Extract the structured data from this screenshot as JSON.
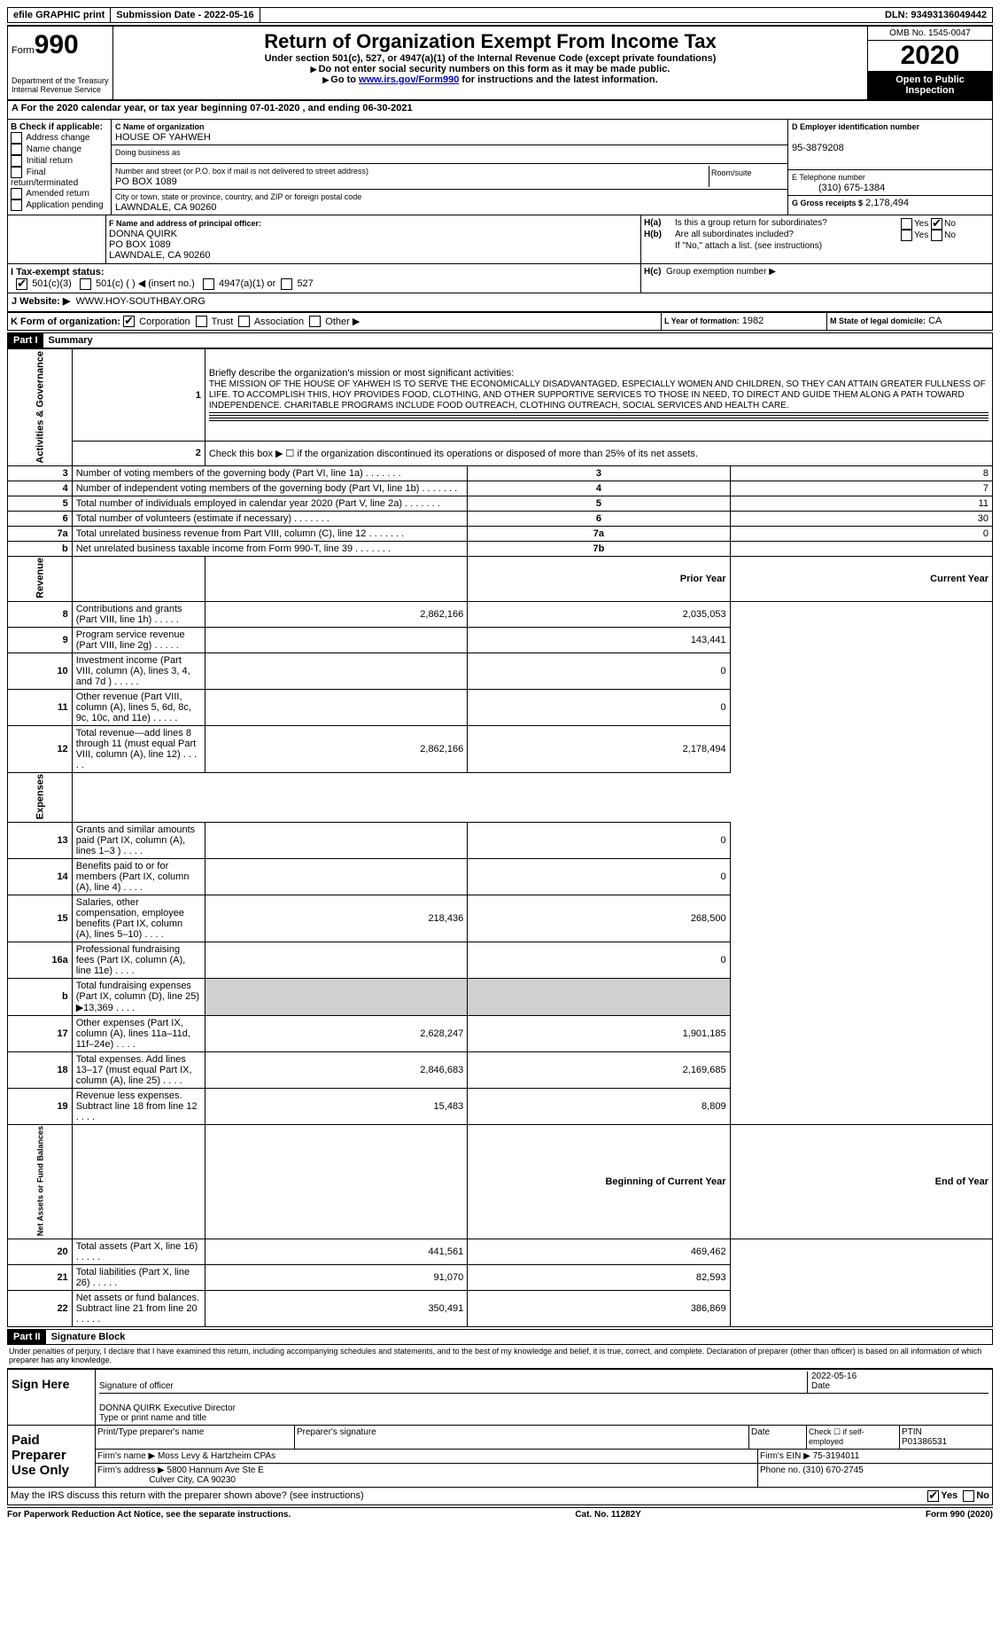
{
  "top_bar": {
    "efile": "efile GRAPHIC print",
    "submission": "Submission Date - 2022-05-16",
    "dln": "DLN: 93493136049442"
  },
  "header": {
    "form_label": "Form",
    "form_number": "990",
    "dept": "Department of the Treasury",
    "irs": "Internal Revenue Service",
    "title": "Return of Organization Exempt From Income Tax",
    "subtitle": "Under section 501(c), 527, or 4947(a)(1) of the Internal Revenue Code (except private foundations)",
    "note1": "Do not enter social security numbers on this form as it may be made public.",
    "note2_prefix": "Go to ",
    "note2_link": "www.irs.gov/Form990",
    "note2_suffix": " for instructions and the latest information.",
    "omb": "OMB No. 1545-0047",
    "year": "2020",
    "open_public": "Open to Public Inspection"
  },
  "section_a": "A  For the 2020 calendar year, or tax year beginning 07-01-2020  , and ending 06-30-2021",
  "box_b": {
    "label": "B Check if applicable:",
    "items": [
      "Address change",
      "Name change",
      "Initial return",
      "Final return/terminated",
      "Amended return",
      "Application pending"
    ]
  },
  "box_c": {
    "label": "C Name of organization",
    "name": "HOUSE OF YAHWEH",
    "dba_label": "Doing business as",
    "addr_label": "Number and street (or P.O. box if mail is not delivered to street address)",
    "addr": "PO BOX 1089",
    "room_label": "Room/suite",
    "city_label": "City or town, state or province, country, and ZIP or foreign postal code",
    "city": "LAWNDALE, CA  90260"
  },
  "box_d": {
    "label": "D Employer identification number",
    "value": "95-3879208"
  },
  "box_e": {
    "label": "E Telephone number",
    "value": "(310) 675-1384"
  },
  "box_g": {
    "label": "G Gross receipts $",
    "value": "2,178,494"
  },
  "box_f": {
    "label": "F  Name and address of principal officer:",
    "name": "DONNA QUIRK",
    "addr1": "PO BOX 1089",
    "addr2": "LAWNDALE, CA  90260"
  },
  "box_h": {
    "a_label": "Is this a group return for subordinates?",
    "b_label": "Are all subordinates included?",
    "b_note": "If \"No,\" attach a list. (see instructions)",
    "c_label": "Group exemption number ▶",
    "yes": "Yes",
    "no": "No"
  },
  "tax_exempt": {
    "label": "I   Tax-exempt status:",
    "opt1": "501(c)(3)",
    "opt2": "501(c) (   ) ◀ (insert no.)",
    "opt3": "4947(a)(1) or",
    "opt4": "527"
  },
  "website": {
    "label": "J   Website: ▶",
    "value": "WWW.HOY-SOUTHBAY.ORG"
  },
  "form_org": {
    "label": "K Form of organization:",
    "opts": [
      "Corporation",
      "Trust",
      "Association",
      "Other ▶"
    ]
  },
  "box_l": {
    "label": "L Year of formation:",
    "value": "1982"
  },
  "box_m": {
    "label": "M State of legal domicile:",
    "value": "CA"
  },
  "part1": {
    "header": "Part I",
    "title": "Summary",
    "line1_label": "Briefly describe the organization's mission or most significant activities:",
    "mission": "THE MISSION OF THE HOUSE OF YAHWEH IS TO SERVE THE ECONOMICALLY DISADVANTAGED, ESPECIALLY WOMEN AND CHILDREN, SO THEY CAN ATTAIN GREATER FULLNESS OF LIFE. TO ACCOMPLISH THIS, HOY PROVIDES FOOD, CLOTHING, AND OTHER SUPPORTIVE SERVICES TO THOSE IN NEED, TO DIRECT AND GUIDE THEM ALONG A PATH TOWARD INDEPENDENCE. CHARITABLE PROGRAMS INCLUDE FOOD OUTREACH, CLOTHING OUTREACH, SOCIAL SERVICES AND HEALTH CARE.",
    "line2": "Check this box ▶ ☐ if the organization discontinued its operations or disposed of more than 25% of its net assets.",
    "vert_labels": {
      "activities": "Activities & Governance",
      "revenue": "Revenue",
      "expenses": "Expenses",
      "netassets": "Net Assets or Fund Balances"
    },
    "lines_gov": [
      {
        "n": "3",
        "desc": "Number of voting members of the governing body (Part VI, line 1a)",
        "box": "3",
        "val": "8"
      },
      {
        "n": "4",
        "desc": "Number of independent voting members of the governing body (Part VI, line 1b)",
        "box": "4",
        "val": "7"
      },
      {
        "n": "5",
        "desc": "Total number of individuals employed in calendar year 2020 (Part V, line 2a)",
        "box": "5",
        "val": "11"
      },
      {
        "n": "6",
        "desc": "Total number of volunteers (estimate if necessary)",
        "box": "6",
        "val": "30"
      },
      {
        "n": "7a",
        "desc": "Total unrelated business revenue from Part VIII, column (C), line 12",
        "box": "7a",
        "val": "0"
      },
      {
        "n": "b",
        "desc": "Net unrelated business taxable income from Form 990-T, line 39",
        "box": "7b",
        "val": ""
      }
    ],
    "col_headers": {
      "prior": "Prior Year",
      "current": "Current Year"
    },
    "lines_rev": [
      {
        "n": "8",
        "desc": "Contributions and grants (Part VIII, line 1h)",
        "prior": "2,862,166",
        "curr": "2,035,053"
      },
      {
        "n": "9",
        "desc": "Program service revenue (Part VIII, line 2g)",
        "prior": "",
        "curr": "143,441"
      },
      {
        "n": "10",
        "desc": "Investment income (Part VIII, column (A), lines 3, 4, and 7d )",
        "prior": "",
        "curr": "0"
      },
      {
        "n": "11",
        "desc": "Other revenue (Part VIII, column (A), lines 5, 6d, 8c, 9c, 10c, and 11e)",
        "prior": "",
        "curr": "0"
      },
      {
        "n": "12",
        "desc": "Total revenue—add lines 8 through 11 (must equal Part VIII, column (A), line 12)",
        "prior": "2,862,166",
        "curr": "2,178,494"
      }
    ],
    "lines_exp": [
      {
        "n": "13",
        "desc": "Grants and similar amounts paid (Part IX, column (A), lines 1–3 )",
        "prior": "",
        "curr": "0"
      },
      {
        "n": "14",
        "desc": "Benefits paid to or for members (Part IX, column (A), line 4)",
        "prior": "",
        "curr": "0"
      },
      {
        "n": "15",
        "desc": "Salaries, other compensation, employee benefits (Part IX, column (A), lines 5–10)",
        "prior": "218,436",
        "curr": "268,500"
      },
      {
        "n": "16a",
        "desc": "Professional fundraising fees (Part IX, column (A), line 11e)",
        "prior": "",
        "curr": "0"
      },
      {
        "n": "b",
        "desc": "Total fundraising expenses (Part IX, column (D), line 25) ▶13,369",
        "prior": "GRAY",
        "curr": "GRAY"
      },
      {
        "n": "17",
        "desc": "Other expenses (Part IX, column (A), lines 11a–11d, 11f–24e)",
        "prior": "2,628,247",
        "curr": "1,901,185"
      },
      {
        "n": "18",
        "desc": "Total expenses. Add lines 13–17 (must equal Part IX, column (A), line 25)",
        "prior": "2,846,683",
        "curr": "2,169,685"
      },
      {
        "n": "19",
        "desc": "Revenue less expenses. Subtract line 18 from line 12",
        "prior": "15,483",
        "curr": "8,809"
      }
    ],
    "col_headers2": {
      "begin": "Beginning of Current Year",
      "end": "End of Year"
    },
    "lines_net": [
      {
        "n": "20",
        "desc": "Total assets (Part X, line 16)",
        "prior": "441,561",
        "curr": "469,462"
      },
      {
        "n": "21",
        "desc": "Total liabilities (Part X, line 26)",
        "prior": "91,070",
        "curr": "82,593"
      },
      {
        "n": "22",
        "desc": "Net assets or fund balances. Subtract line 21 from line 20",
        "prior": "350,491",
        "curr": "386,869"
      }
    ]
  },
  "part2": {
    "header": "Part II",
    "title": "Signature Block",
    "declaration": "Under penalties of perjury, I declare that I have examined this return, including accompanying schedules and statements, and to the best of my knowledge and belief, it is true, correct, and complete. Declaration of preparer (other than officer) is based on all information of which preparer has any knowledge.",
    "sign_here": "Sign Here",
    "sig_officer": "Signature of officer",
    "sig_date": "2022-05-16",
    "date_label": "Date",
    "officer_name": "DONNA QUIRK  Executive Director",
    "type_name": "Type or print name and title",
    "paid_prep": "Paid Preparer Use Only",
    "col_print": "Print/Type preparer's name",
    "col_sig": "Preparer's signature",
    "col_date": "Date",
    "col_check": "Check ☐ if self-employed",
    "col_ptin": "PTIN",
    "ptin": "P01386531",
    "firm_name_label": "Firm's name    ▶",
    "firm_name": "Moss Levy & Hartzheim CPAs",
    "firm_ein_label": "Firm's EIN ▶",
    "firm_ein": "75-3194011",
    "firm_addr_label": "Firm's address ▶",
    "firm_addr1": "5800 Hannum Ave Ste E",
    "firm_addr2": "Culver City, CA  90230",
    "phone_label": "Phone no.",
    "phone": "(310) 670-2745",
    "discuss": "May the IRS discuss this return with the preparer shown above? (see instructions)"
  },
  "footer": {
    "left": "For Paperwork Reduction Act Notice, see the separate instructions.",
    "center": "Cat. No. 11282Y",
    "right": "Form 990 (2020)"
  }
}
